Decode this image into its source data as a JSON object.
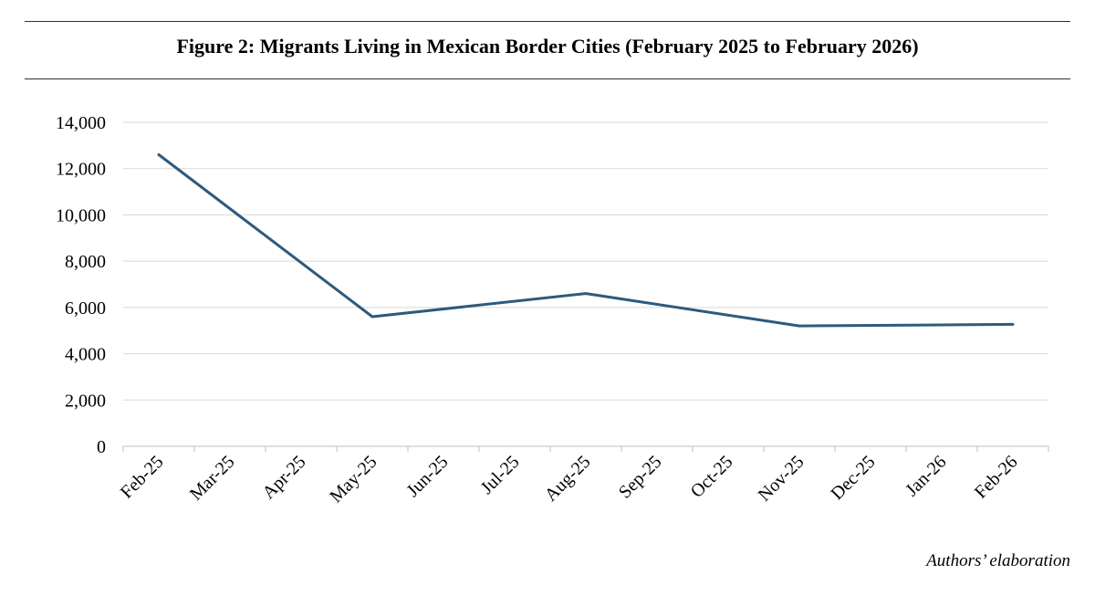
{
  "title": "Figure 2: Migrants Living in Mexican Border Cities (February 2025 to February 2026)",
  "source": "Authors’ elaboration",
  "chart_data": {
    "type": "line",
    "title": "Figure 2: Migrants Living in Mexican Border Cities (February 2025 to February 2026)",
    "xlabel": "",
    "ylabel": "",
    "categories": [
      "Feb-25",
      "Mar-25",
      "Apr-25",
      "May-25",
      "Jun-25",
      "Jul-25",
      "Aug-25",
      "Sep-25",
      "Oct-25",
      "Nov-25",
      "Dec-25",
      "Jan-26",
      "Feb-26"
    ],
    "series": [
      {
        "values": [
          12600,
          null,
          null,
          5600,
          null,
          null,
          6600,
          null,
          null,
          5200,
          null,
          null,
          5270
        ],
        "color": "#2e5a7c"
      }
    ],
    "ylim": [
      0,
      14000
    ],
    "yticks": [
      "0",
      "2,000",
      "4,000",
      "6,000",
      "8,000",
      "10,000",
      "12,000",
      "14,000"
    ],
    "grid": true,
    "legend": "none"
  }
}
